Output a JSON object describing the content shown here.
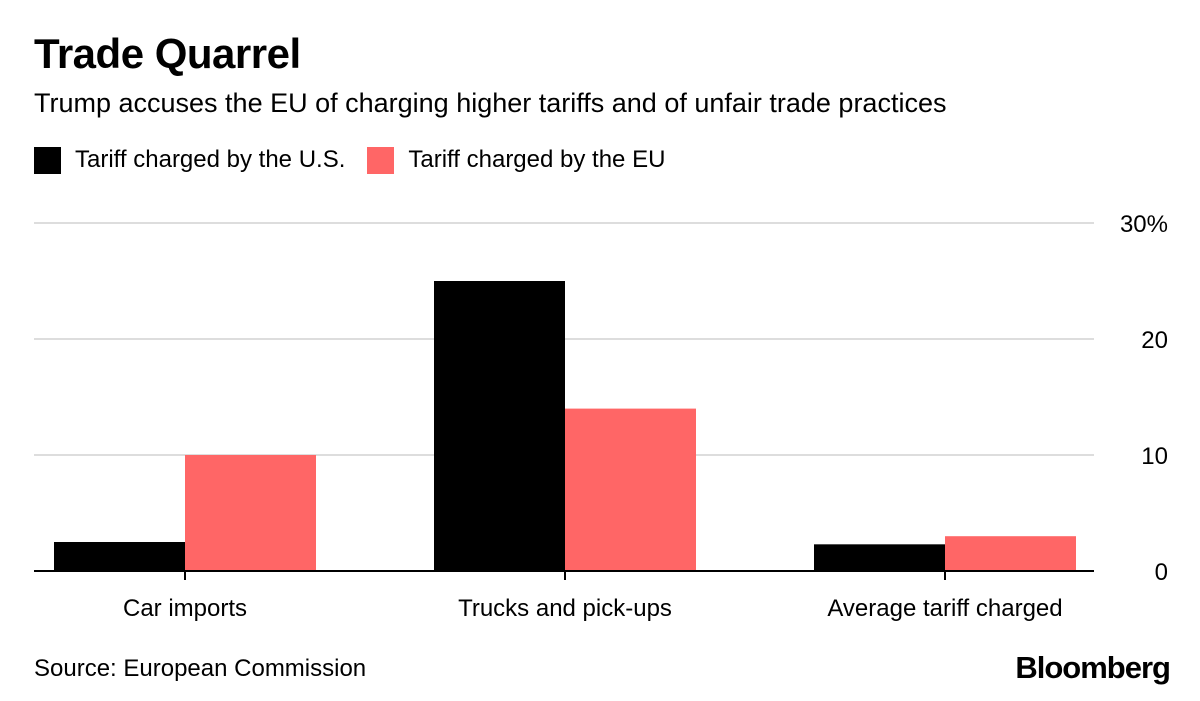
{
  "colors": {
    "us": "#000000",
    "eu": "#ff6666",
    "grid": "#dddddd",
    "axis": "#000000"
  },
  "chart_data": {
    "type": "bar",
    "title": "Trade Quarrel",
    "subtitle": "Trump accuses the EU of charging higher tariffs and of unfair trade practices",
    "categories": [
      "Car imports",
      "Trucks and pick-ups",
      "Average tariff charged"
    ],
    "series": [
      {
        "name": "Tariff charged by the U.S.",
        "values": [
          2.5,
          25,
          2.3
        ]
      },
      {
        "name": "Tariff charged by the EU",
        "values": [
          10,
          14,
          3
        ]
      }
    ],
    "ylim": [
      0,
      30
    ],
    "yticks": [
      0,
      10,
      20,
      30
    ],
    "ytick_labels": [
      "0",
      "10",
      "20",
      "30%"
    ],
    "xlabel": "",
    "ylabel": "",
    "grid": true,
    "legend_position": "top-left",
    "axis_position": "right"
  },
  "footer": {
    "source": "Source: European Commission",
    "brand": "Bloomberg"
  }
}
